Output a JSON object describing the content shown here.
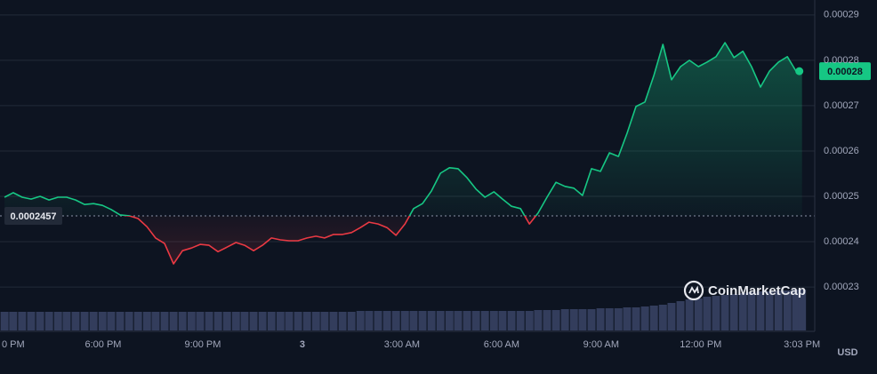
{
  "chart_data": {
    "type": "line",
    "x": [
      0.03,
      0.29,
      0.56,
      0.83,
      1.1,
      1.37,
      1.64,
      1.9,
      2.17,
      2.44,
      2.71,
      2.98,
      3.24,
      3.51,
      3.78,
      4.05,
      4.32,
      4.58,
      4.85,
      5.12,
      5.39,
      5.66,
      5.92,
      6.19,
      6.46,
      6.73,
      7.0,
      7.26,
      7.53,
      7.8,
      8.07,
      8.34,
      8.6,
      8.87,
      9.14,
      9.41,
      9.67,
      9.94,
      10.21,
      10.48,
      10.75,
      11.01,
      11.28,
      11.55,
      11.82,
      12.09,
      12.35,
      12.62,
      12.89,
      13.16,
      13.43,
      13.69,
      13.96,
      14.23,
      14.5,
      14.77,
      15.03,
      15.3,
      15.57,
      15.84,
      16.1,
      16.37,
      16.64,
      16.91,
      17.18,
      17.44,
      17.71,
      17.98,
      18.25,
      18.52,
      18.78,
      19.05,
      19.32,
      19.59,
      19.86,
      20.12,
      20.39,
      20.66,
      20.93,
      21.19,
      21.46,
      21.73,
      22.0,
      22.27,
      22.53,
      22.8,
      23.07,
      23.34,
      23.61,
      23.87,
      24.05
    ],
    "series": [
      {
        "color": "#16c784",
        "down_color": "#ea3943",
        "values": [
          0.0002498,
          0.0002508,
          0.0002498,
          0.0002494,
          0.00025,
          0.0002492,
          0.0002498,
          0.0002498,
          0.0002492,
          0.0002482,
          0.0002484,
          0.000248,
          0.0002471,
          0.0002459,
          0.0002457,
          0.0002451,
          0.0002433,
          0.0002408,
          0.0002396,
          0.0002351,
          0.000238,
          0.0002386,
          0.0002394,
          0.0002392,
          0.0002378,
          0.0002388,
          0.0002398,
          0.0002392,
          0.000238,
          0.0002392,
          0.0002408,
          0.0002404,
          0.0002402,
          0.0002402,
          0.0002408,
          0.0002412,
          0.0002408,
          0.0002416,
          0.0002416,
          0.000242,
          0.0002431,
          0.0002443,
          0.0002439,
          0.0002431,
          0.0002414,
          0.0002439,
          0.0002473,
          0.0002484,
          0.0002512,
          0.0002551,
          0.0002563,
          0.0002561,
          0.0002541,
          0.0002516,
          0.0002498,
          0.000251,
          0.0002494,
          0.0002478,
          0.0002473,
          0.0002439,
          0.0002463,
          0.0002498,
          0.0002531,
          0.0002522,
          0.0002518,
          0.0002502,
          0.0002561,
          0.0002555,
          0.0002596,
          0.0002588,
          0.0002639,
          0.0002698,
          0.0002708,
          0.0002767,
          0.0002835,
          0.0002757,
          0.0002786,
          0.00028,
          0.0002786,
          0.0002796,
          0.0002808,
          0.0002839,
          0.0002806,
          0.000282,
          0.0002786,
          0.0002741,
          0.0002776,
          0.0002796,
          0.0002808,
          0.0002776,
          0.0002776
        ]
      }
    ],
    "volume": {
      "color": "#333d5c",
      "values": [
        21,
        21,
        21,
        21,
        21,
        21,
        21,
        21,
        21,
        21,
        21,
        21,
        21,
        21,
        21,
        21,
        21,
        21,
        21,
        21,
        21,
        21,
        21,
        21,
        21,
        21,
        21,
        21,
        21,
        21,
        21,
        21,
        21,
        21,
        21,
        21,
        21,
        21,
        21,
        21,
        22,
        22,
        22,
        22,
        22,
        22,
        22,
        22,
        22,
        22,
        22,
        22,
        22,
        22,
        22,
        22,
        22,
        22,
        22,
        22,
        23,
        23,
        23,
        24,
        24,
        24,
        24,
        25,
        25,
        25,
        26,
        26,
        27,
        28,
        29,
        31,
        33,
        35,
        36,
        38,
        39,
        40,
        41,
        42,
        43,
        44,
        44,
        45,
        45,
        46,
        46
      ],
      "vlim": [
        0,
        100
      ]
    },
    "baseline": 0.0002457,
    "current_label": "0.00028",
    "xlim": [
      0,
      24.3
    ],
    "xticks": [
      {
        "value": 0,
        "label": "0 PM"
      },
      {
        "value": 3,
        "label": "6:00 PM"
      },
      {
        "value": 6,
        "label": "9:00 PM"
      },
      {
        "value": 9,
        "label": "3"
      },
      {
        "value": 12,
        "label": "3:00 AM"
      },
      {
        "value": 15,
        "label": "6:00 AM"
      },
      {
        "value": 18,
        "label": "9:00 AM"
      },
      {
        "value": 21,
        "label": "12:00 PM"
      },
      {
        "value": 24.05,
        "label": "3:03 PM"
      }
    ],
    "ylim": [
      0.000221,
      0.0002933
    ],
    "yticks": [
      0.00029,
      0.00028,
      0.00027,
      0.00026,
      0.00025,
      0.00024,
      0.00023
    ],
    "grid": true,
    "currency": "USD",
    "watermark": "CoinMarketCap"
  }
}
